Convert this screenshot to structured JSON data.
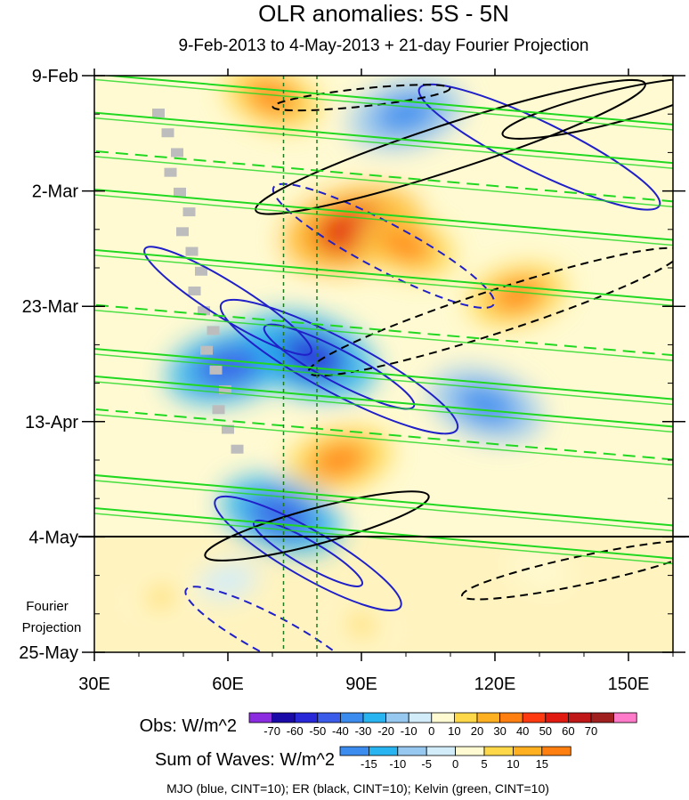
{
  "chart_data": {
    "type": "heatmap",
    "title": "OLR anomalies: 5S - 5N",
    "subtitle": "9-Feb-2013 to 4-May-2013 + 21-day Fourier Projection",
    "x_axis": {
      "ticks": [
        "30E",
        "60E",
        "90E",
        "120E",
        "150E"
      ],
      "tick_values": [
        30,
        60,
        90,
        120,
        150
      ],
      "range": [
        30,
        160
      ]
    },
    "y_axis": {
      "ticks": [
        "9-Feb",
        "2-Mar",
        "23-Mar",
        "13-Apr",
        "4-May",
        "25-May"
      ],
      "range": [
        "9-Feb-2013",
        "25-May-2013"
      ],
      "reversed": true
    },
    "projection_label": [
      "Fourier",
      "Projection"
    ],
    "obs_colorbar": {
      "label": "Obs: W/m^2",
      "levels": [
        "-70",
        "-60",
        "-50",
        "-40",
        "-30",
        "-20",
        "-10",
        "0",
        "10",
        "20",
        "30",
        "40",
        "50",
        "60",
        "70"
      ],
      "colors": [
        "#8c2ce0",
        "#1a0aa8",
        "#2828d8",
        "#3a5ce8",
        "#3c8cf0",
        "#28b4f0",
        "#96c8f0",
        "#d2ecfa",
        "#fffad2",
        "#ffd84a",
        "#ffb020",
        "#ff8010",
        "#ff3a10",
        "#e01a10",
        "#c01818",
        "#a02020",
        "#ff7ac8"
      ]
    },
    "waves_colorbar": {
      "label": "Sum of Waves: W/m^2",
      "levels": [
        "-15",
        "-10",
        "-5",
        "0",
        "5",
        "10",
        "15"
      ],
      "colors": [
        "#3c8cf0",
        "#28b4f0",
        "#96c8f0",
        "#d2ecfa",
        "#fffad2",
        "#ffd84a",
        "#ffb020",
        "#ff8010"
      ]
    },
    "legend_note": "MJO (blue, CINT=10); ER (black, CINT=10); Kelvin (green, CINT=10)",
    "series": [
      {
        "name": "MJO",
        "color": "#2020c8",
        "cint": 10
      },
      {
        "name": "ER",
        "color": "#000000",
        "cint": 10
      },
      {
        "name": "Kelvin",
        "color": "#20d820",
        "cint": 10
      }
    ],
    "reference_longitudes": [
      72.5,
      80
    ],
    "anomaly_features": [
      {
        "lon": 88,
        "date": "9-Mar-2013",
        "value": 55
      },
      {
        "lon": 100,
        "date": "12-Mar-2013",
        "value": 30
      },
      {
        "lon": 125,
        "date": "21-Mar-2013",
        "value": 30
      },
      {
        "lon": 78,
        "date": "1-Apr-2013",
        "value": -55
      },
      {
        "lon": 60,
        "date": "3-Apr-2013",
        "value": -45
      },
      {
        "lon": 118,
        "date": "10-Apr-2013",
        "value": -40
      },
      {
        "lon": 85,
        "date": "20-Apr-2013",
        "value": 35
      },
      {
        "lon": 72,
        "date": "30-Apr-2013",
        "value": -45
      },
      {
        "lon": 100,
        "date": "16-Feb-2013",
        "value": -40
      },
      {
        "lon": 70,
        "date": "13-Feb-2013",
        "value": 30
      },
      {
        "lon": 45,
        "date": "15-May-2013",
        "value": 10
      },
      {
        "lon": 90,
        "date": "20-May-2013",
        "value": 10
      },
      {
        "lon": 60,
        "date": "12-May-2013",
        "value": -5
      },
      {
        "lon": 130,
        "date": "10-May-2013",
        "value": 5
      }
    ]
  }
}
